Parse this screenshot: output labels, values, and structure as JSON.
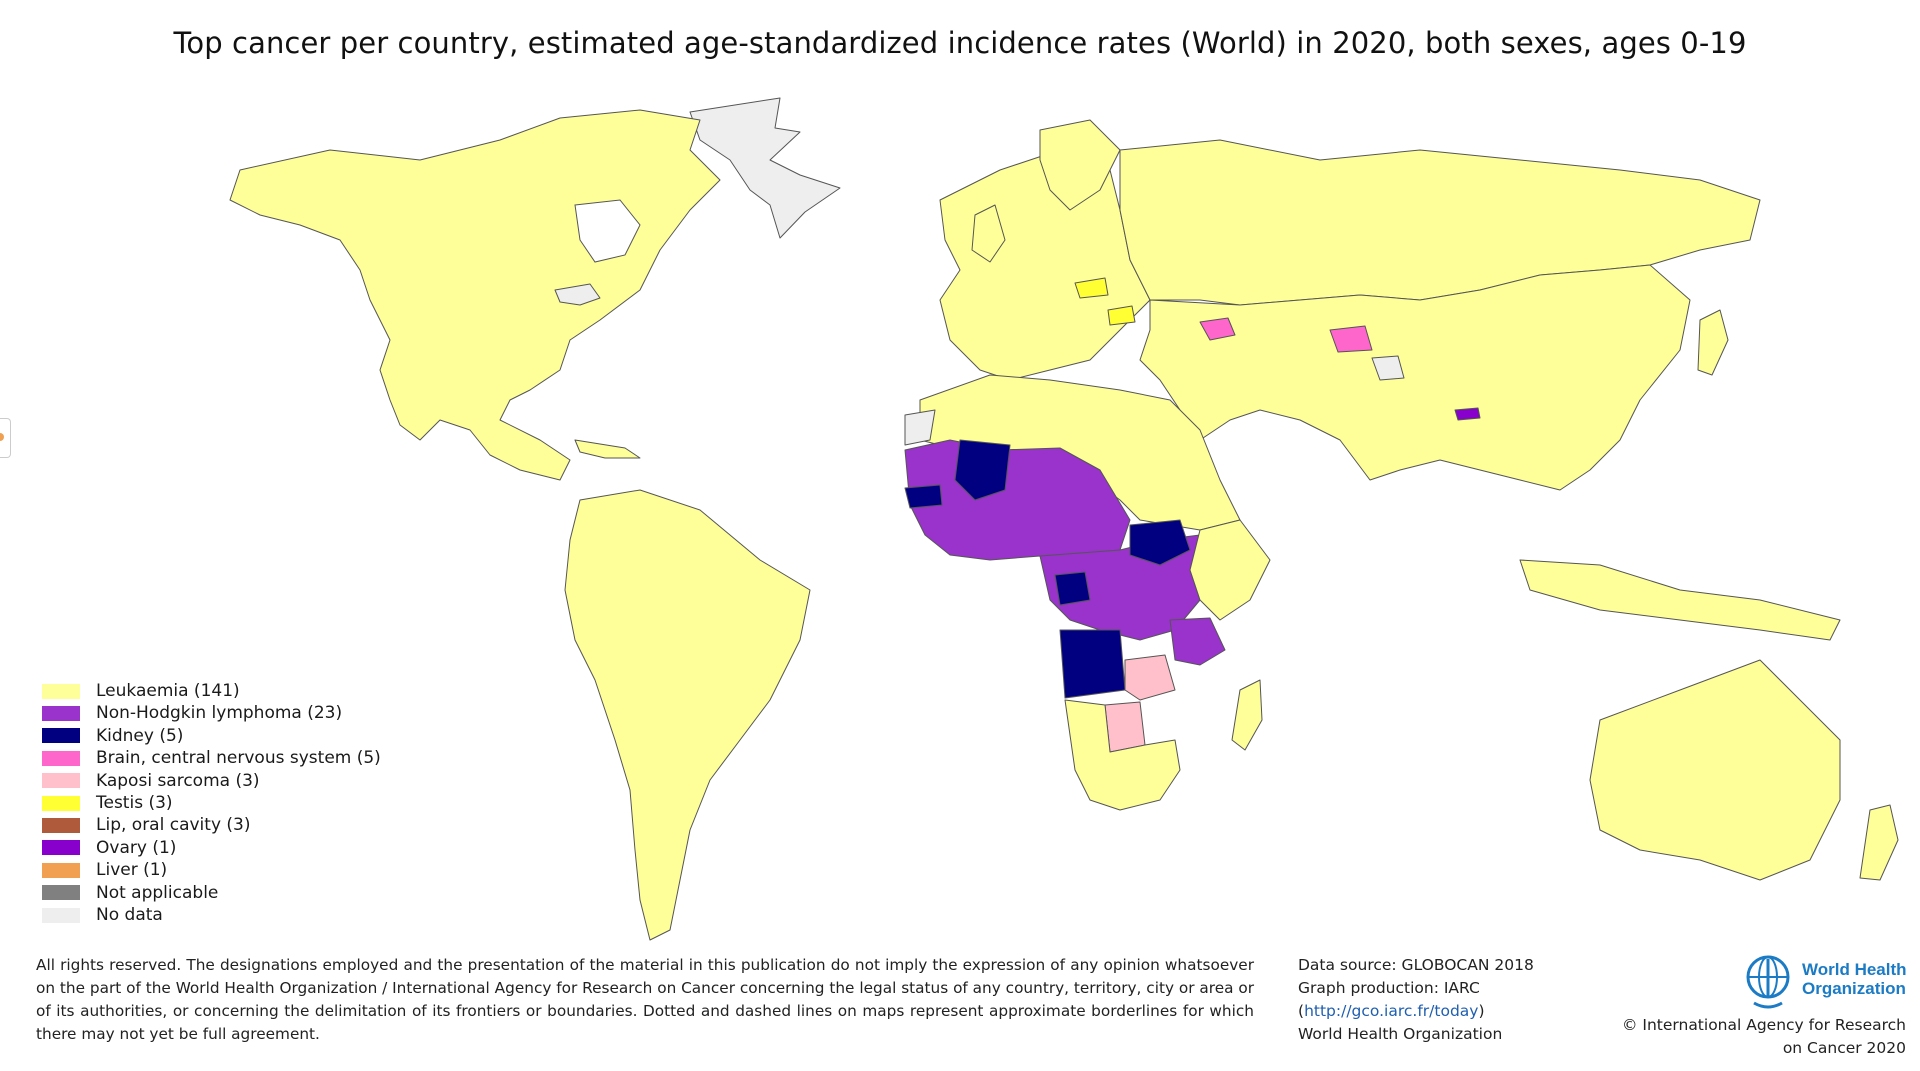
{
  "title": "Top cancer per country, estimated age-standardized incidence rates (World) in 2020, both sexes, ages 0-19",
  "colors": {
    "leukaemia": "#ffff99",
    "non_hodgkin_lymphoma": "#9933cc",
    "kidney": "#000080",
    "brain_cns": "#ff66cc",
    "kaposi_sarcoma": "#ffc0cb",
    "testis": "#ffff33",
    "lip_oral_cavity": "#b05a3c",
    "ovary": "#8800cc",
    "liver": "#f0a050",
    "not_applicable": "#808080",
    "no_data": "#eeeeee",
    "border": "#555555",
    "who_blue": "#1b7bc4"
  },
  "legend": [
    {
      "label": "Leukaemia (141)",
      "color": "#ffff99"
    },
    {
      "label": "Non-Hodgkin lymphoma (23)",
      "color": "#9933cc"
    },
    {
      "label": "Kidney (5)",
      "color": "#000080"
    },
    {
      "label": "Brain, central nervous system (5)",
      "color": "#ff66cc"
    },
    {
      "label": "Kaposi sarcoma (3)",
      "color": "#ffc0cb"
    },
    {
      "label": "Testis (3)",
      "color": "#ffff33"
    },
    {
      "label": "Lip, oral cavity (3)",
      "color": "#b05a3c"
    },
    {
      "label": "Ovary (1)",
      "color": "#8800cc"
    },
    {
      "label": "Liver (1)",
      "color": "#f0a050"
    },
    {
      "label": "Not applicable",
      "color": "#808080"
    },
    {
      "label": "No data",
      "color": "#eeeeee"
    }
  ],
  "disclaimer": "All rights reserved. The designations employed and the presentation of the material in this publication do not imply the expression of any opinion whatsoever on the part of the World Health Organization / International Agency for Research on Cancer concerning the legal status of any country, territory, city or area or of its authorities, or concerning the delimitation of its frontiers or boundaries. Dotted and dashed lines on maps represent approximate borderlines for which there may not yet be full agreement.",
  "credits": {
    "data_source": "Data source: GLOBOCAN 2018",
    "graph_production": "Graph production: IARC",
    "link_open": "(",
    "link": "http://gco.iarc.fr/today",
    "link_close": ")",
    "organization": "World Health Organization"
  },
  "who_logo": {
    "line1": "World Health",
    "line2": "Organization",
    "icon": "who-emblem-icon"
  },
  "copyright": {
    "line1": "© International Agency for Research",
    "line2": "on Cancer 2020"
  }
}
